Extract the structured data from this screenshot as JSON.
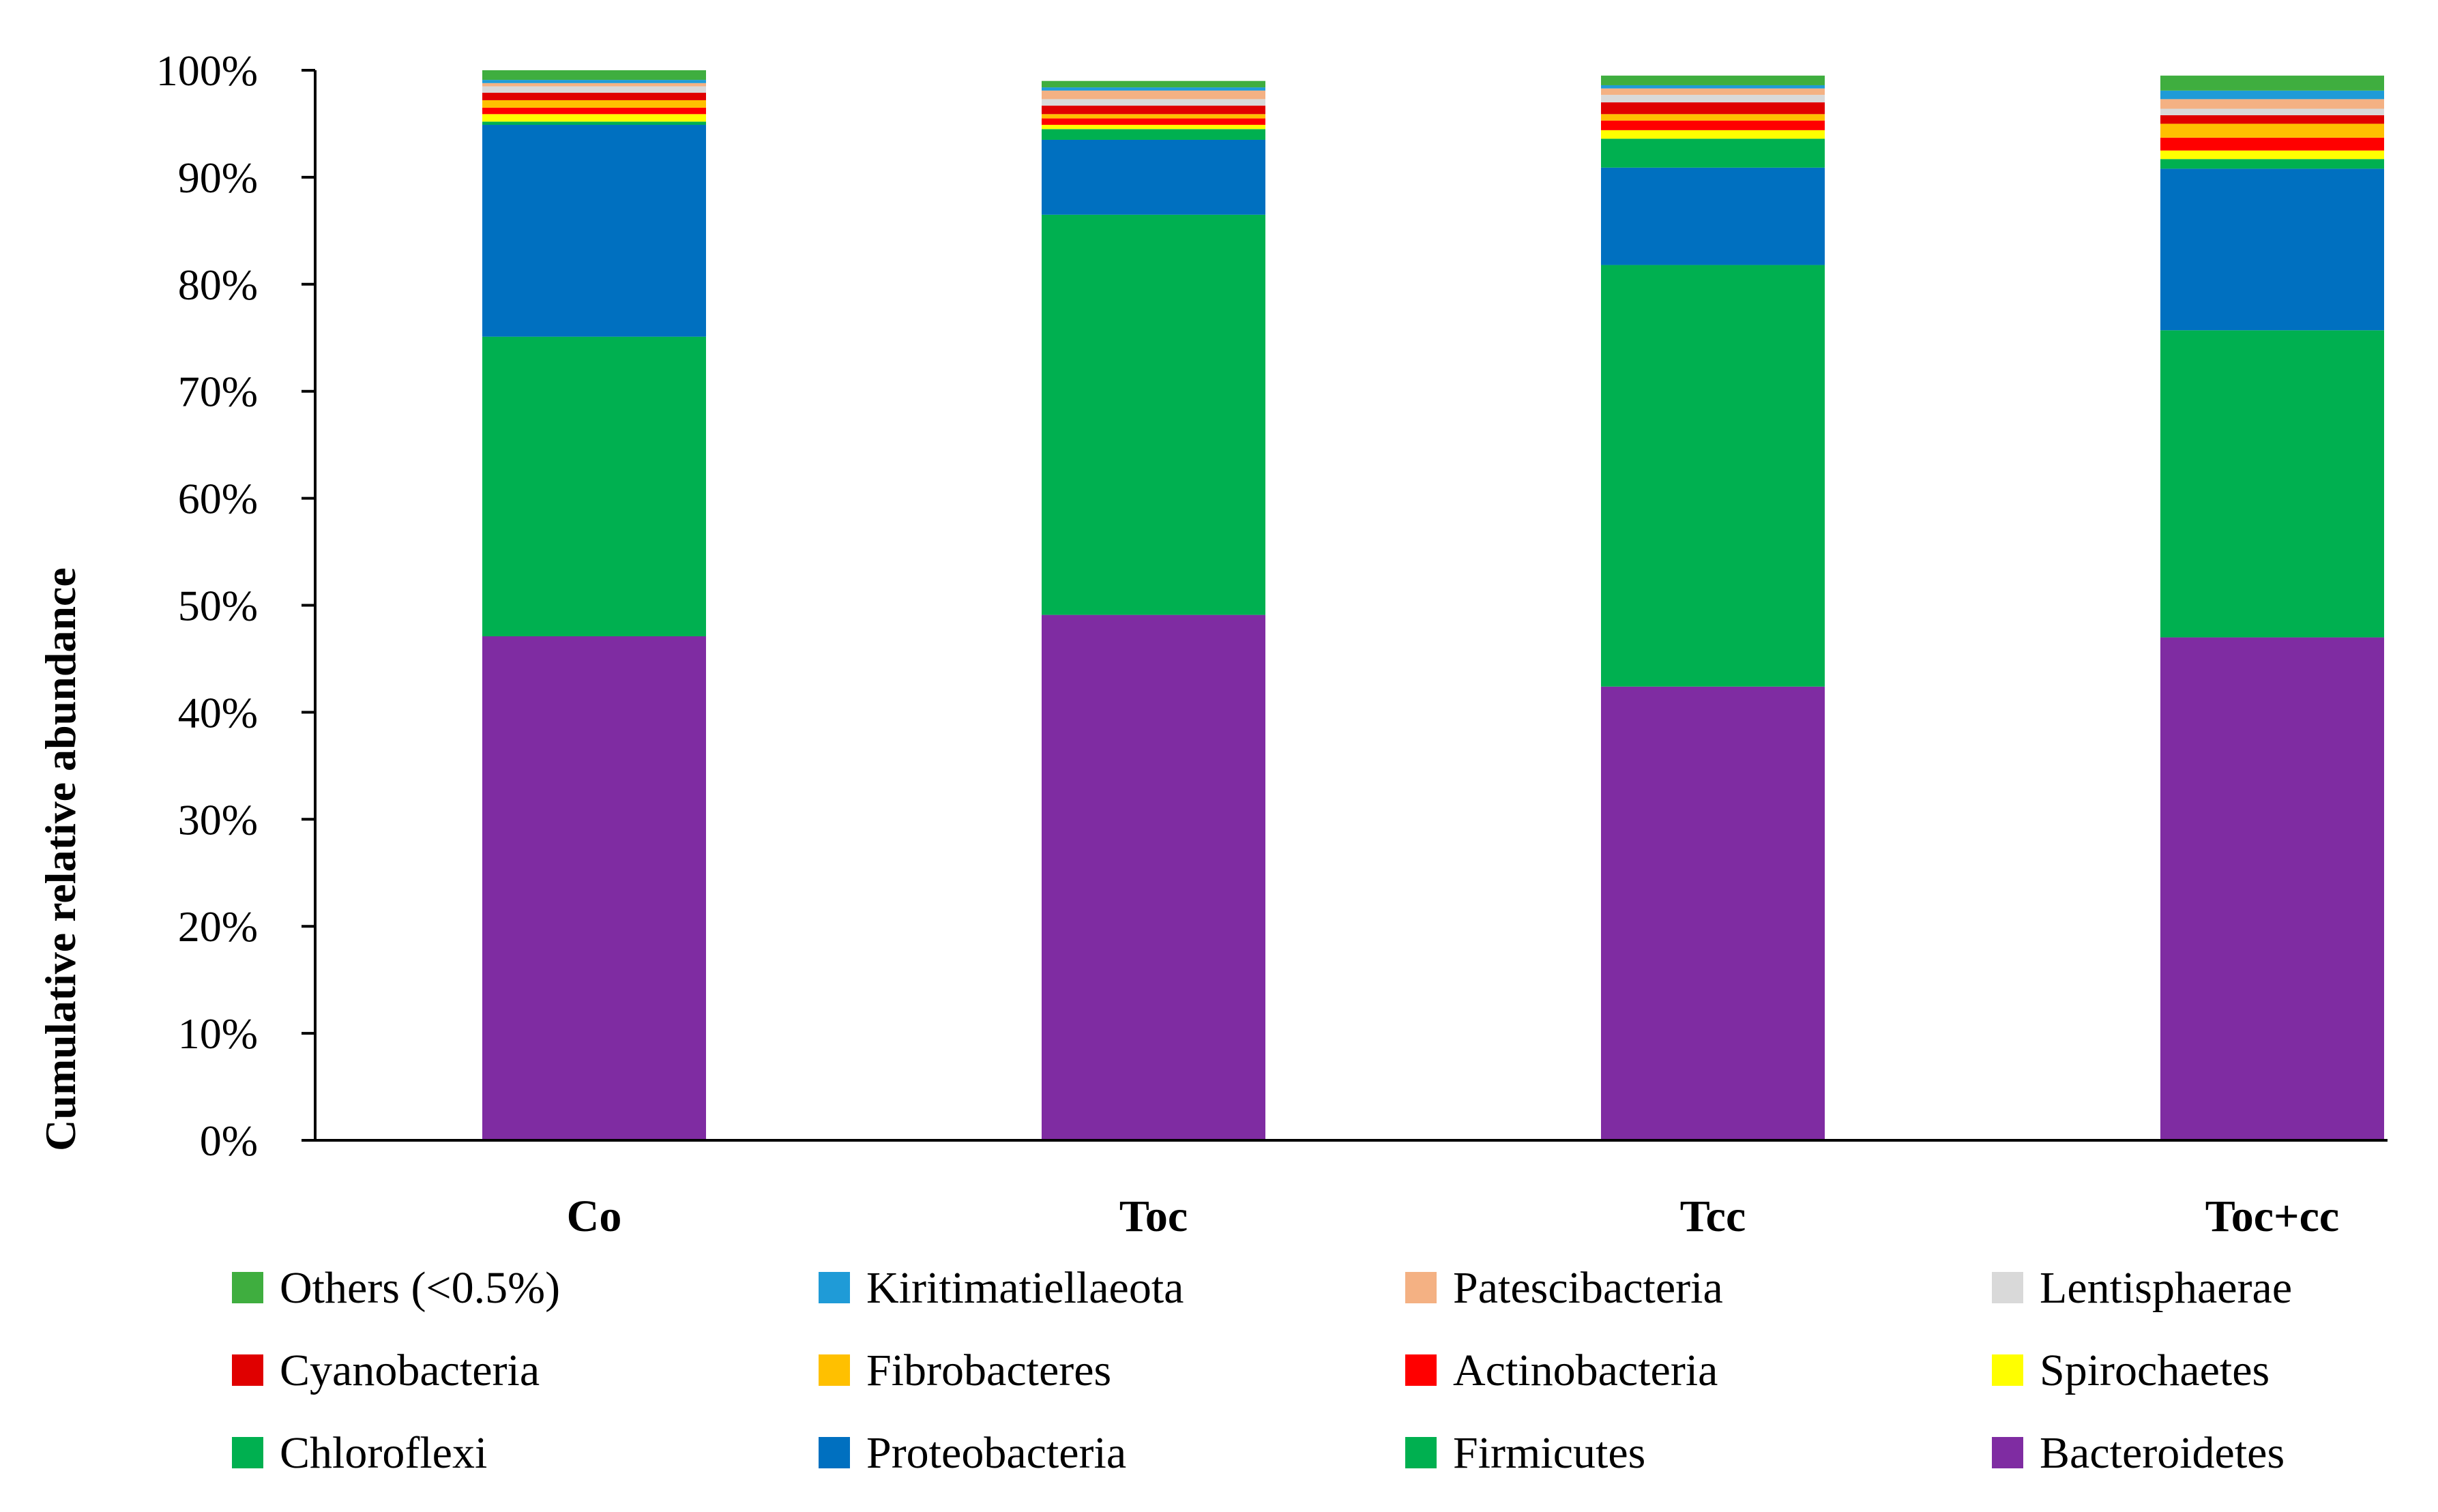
{
  "chart_data": {
    "type": "bar",
    "stacked": true,
    "ylabel": "Cumulative relative abundance",
    "xlabel": "",
    "ylim": [
      0,
      100
    ],
    "y_ticks": [
      "0%",
      "10%",
      "20%",
      "30%",
      "40%",
      "50%",
      "60%",
      "70%",
      "80%",
      "90%",
      "100%"
    ],
    "categories": [
      "Co",
      "Toc",
      "Tcc",
      "Toc+cc"
    ],
    "grid": false,
    "legend_position": "bottom",
    "series": [
      {
        "name": "Bacteroidetes",
        "color": "#7F2CA2",
        "values": [
          47.1,
          49.1,
          42.4,
          47.0
        ]
      },
      {
        "name": "Firmicutes",
        "color": "#00B050",
        "values": [
          28.0,
          37.4,
          39.4,
          28.7
        ]
      },
      {
        "name": "Proteobacteria",
        "color": "#0070C0",
        "values": [
          19.8,
          7.0,
          9.1,
          15.1
        ]
      },
      {
        "name": "Chloroflexi",
        "color": "#00B050",
        "values": [
          0.3,
          1.0,
          2.7,
          0.9
        ]
      },
      {
        "name": "Spirochaetes",
        "color": "#FFFF00",
        "values": [
          0.7,
          0.4,
          0.8,
          0.8
        ]
      },
      {
        "name": "Actinobacteria",
        "color": "#FF0000",
        "values": [
          0.6,
          0.6,
          0.9,
          1.2
        ]
      },
      {
        "name": "Fibrobacteres",
        "color": "#FFC000",
        "values": [
          0.7,
          0.4,
          0.6,
          1.3
        ]
      },
      {
        "name": "Cyanobacteria",
        "color": "#E00000",
        "values": [
          0.7,
          0.8,
          1.1,
          0.8
        ]
      },
      {
        "name": "Lentisphaerae",
        "color": "#D9D9D9",
        "values": [
          0.6,
          0.6,
          0.7,
          0.6
        ]
      },
      {
        "name": "Patescibacteria",
        "color": "#F4B183",
        "values": [
          0.3,
          0.8,
          0.6,
          0.9
        ]
      },
      {
        "name": "Kiritimatiellaeota",
        "color": "#1F9BD7",
        "values": [
          0.3,
          0.3,
          0.3,
          0.8
        ]
      },
      {
        "name": "Others (<0.5%)",
        "color": "#3FAE3F",
        "values": [
          0.9,
          0.6,
          0.9,
          1.4
        ]
      }
    ],
    "legend_order": [
      "Others (<0.5%)",
      "Kiritimatiellaeota",
      "Patescibacteria",
      "Lentisphaerae",
      "Cyanobacteria",
      "Fibrobacteres",
      "Actinobacteria",
      "Spirochaetes",
      "Chloroflexi",
      "Proteobacteria",
      "Firmicutes",
      "Bacteroidetes"
    ]
  }
}
